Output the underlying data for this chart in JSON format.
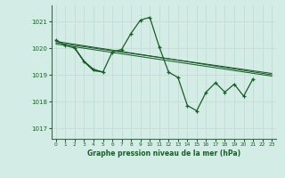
{
  "title": "Graphe pression niveau de la mer (hPa)",
  "background_color": "#d4ece6",
  "grid_color": "#c8ddd8",
  "line_color": "#1a5c2a",
  "xlim": [
    -0.5,
    23.5
  ],
  "ylim": [
    1016.6,
    1021.6
  ],
  "yticks": [
    1017,
    1018,
    1019,
    1020,
    1021
  ],
  "xticks": [
    0,
    1,
    2,
    3,
    4,
    5,
    6,
    7,
    8,
    9,
    10,
    11,
    12,
    13,
    14,
    15,
    16,
    17,
    18,
    19,
    20,
    21,
    22,
    23
  ],
  "y_main": [
    1020.3,
    1020.1,
    1020.0,
    1019.5,
    1019.2,
    1019.1,
    1019.85,
    1019.95,
    1020.55,
    1021.05,
    1021.15,
    1020.05,
    1019.1,
    1018.9,
    1017.85,
    1017.65,
    1018.35,
    1018.7,
    1018.35,
    1018.65,
    1018.2,
    1018.85
  ],
  "loop_x": [
    2,
    3,
    4,
    5,
    4,
    3,
    2
  ],
  "loop_y": [
    1020.0,
    1019.5,
    1019.2,
    1019.1,
    1019.15,
    1019.48,
    1020.0
  ],
  "trend_lines": [
    {
      "x": [
        0,
        23
      ],
      "y": [
        1020.25,
        1019.0
      ]
    },
    {
      "x": [
        0,
        23
      ],
      "y": [
        1020.2,
        1019.05
      ]
    },
    {
      "x": [
        0,
        23
      ],
      "y": [
        1020.15,
        1018.95
      ]
    }
  ]
}
